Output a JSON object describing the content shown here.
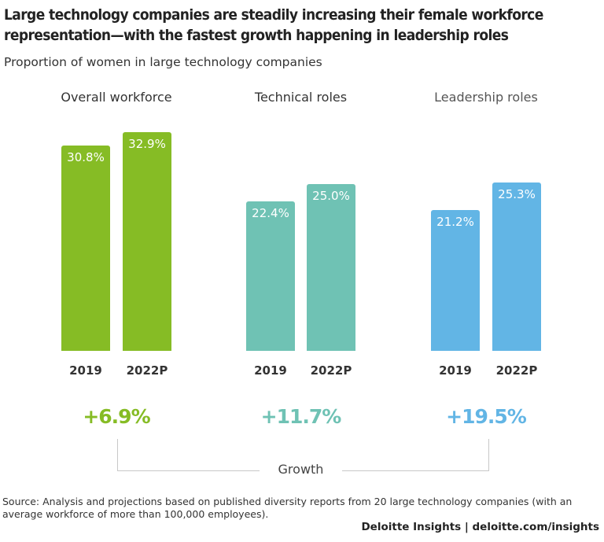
{
  "title": "Large technology companies are steadily increasing their female workforce representation—with the fastest growth happening in leadership roles",
  "subtitle": "Proportion of women in large technology companies",
  "chart_data": {
    "type": "bar",
    "title": "Large technology companies are steadily increasing their female workforce representation—with the fastest growth happening in leadership roles",
    "subtitle": "Proportion of women in large technology companies",
    "groups": [
      {
        "name": "Overall workforce",
        "color": "#86bc25",
        "categories": [
          "2019",
          "2022P"
        ],
        "values": [
          30.8,
          32.9
        ],
        "labels": [
          "30.8%",
          "32.9%"
        ],
        "growth": "+6.9%"
      },
      {
        "name": "Technical roles",
        "color": "#6fc2b4",
        "categories": [
          "2019",
          "2022P"
        ],
        "values": [
          22.4,
          25.0
        ],
        "labels": [
          "22.4%",
          "25.0%"
        ],
        "growth": "+11.7%"
      },
      {
        "name": "Leadership roles",
        "color": "#62b5e5",
        "categories": [
          "2019",
          "2022P"
        ],
        "values": [
          21.2,
          25.3
        ],
        "labels": [
          "21.2%",
          "25.3%"
        ],
        "growth": "+19.5%"
      }
    ],
    "growth_label": "Growth",
    "ylim": [
      0,
      52.7
    ],
    "grid": false
  },
  "source": "Source: Analysis and projections based on published diversity reports from 20 large technology companies (with an average workforce of more than 100,000 employees).",
  "brand": "Deloitte Insights | deloitte.com/insights"
}
